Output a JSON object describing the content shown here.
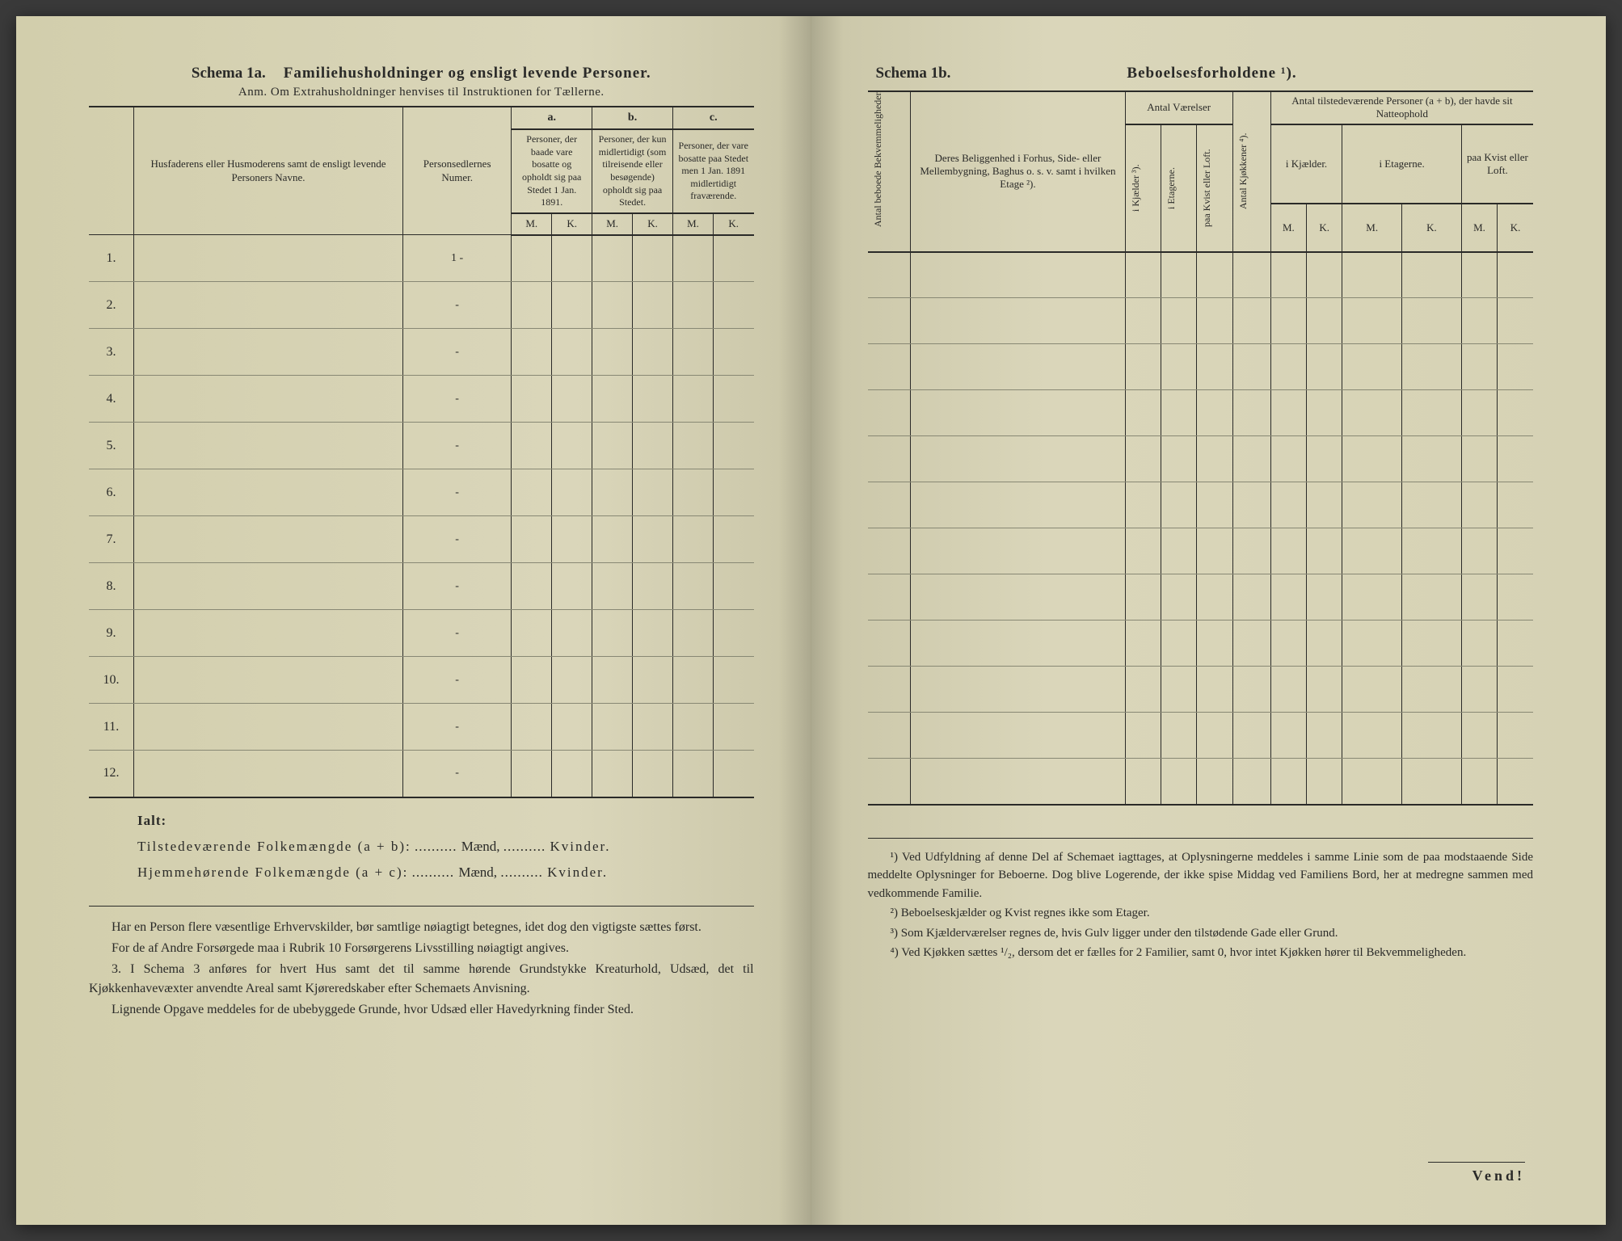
{
  "left": {
    "schema_label": "Schema 1a.",
    "schema_title": "Familiehusholdninger og ensligt levende Personer.",
    "subtitle": "Anm. Om Extrahusholdninger henvises til Instruktionen for Tællerne.",
    "col_name": "Husfaderens eller Husmoderens samt de ensligt levende Personers Navne.",
    "col_num": "Personsedlernes Numer.",
    "col_a_letter": "a.",
    "col_a": "Personer, der baade vare bosatte og opholdt sig paa Stedet 1 Jan. 1891.",
    "col_b_letter": "b.",
    "col_b": "Personer, der kun midlertidigt (som tilreisende eller besøgende) opholdt sig paa Stedet.",
    "col_c_letter": "c.",
    "col_c": "Personer, der vare bosatte paa Stedet men 1 Jan. 1891 midlertidigt fraværende.",
    "mk_m": "M.",
    "mk_k": "K.",
    "row_labels": [
      "1.",
      "2.",
      "3.",
      "4.",
      "5.",
      "6.",
      "7.",
      "8.",
      "9.",
      "10.",
      "11.",
      "12."
    ],
    "row_marks": [
      "1 -",
      "-",
      "-",
      "-",
      "-",
      "-",
      "-",
      "-",
      "-",
      "-",
      "-",
      "-"
    ],
    "ialt": "Ialt:",
    "tot1_a": "Tilstedeværende Folkemængde (a + b):",
    "tot1_b": "Mænd,",
    "tot1_c": "Kvinder.",
    "tot2_a": "Hjemmehørende Folkemængde (a + c):",
    "tot2_b": "Mænd,",
    "tot2_c": "Kvinder.",
    "note1": "Har en Person flere væsentlige Erhvervskilder, bør samtlige nøiagtigt betegnes, idet dog den vigtigste sættes først.",
    "note2": "For de af Andre Forsørgede maa i Rubrik 10 Forsørgerens Livsstilling nøiagtigt angives.",
    "note3_num": "3.",
    "note3": "I Schema 3 anføres for hvert Hus samt det til samme hørende Grundstykke Kreaturhold, Udsæd, det til Kjøkkenhavevæxter anvendte Areal samt Kjøreredskaber efter Schemaets Anvisning.",
    "note4": "Lignende Opgave meddeles for de ubebyggede Grunde, hvor Udsæd eller Havedyrkning finder Sted."
  },
  "right": {
    "schema_label": "Schema 1b.",
    "schema_title": "Beboelsesforholdene ¹).",
    "col1": "Antal beboede Bekvemmeligheder.",
    "col2": "Deres Beliggenhed i Forhus, Side- eller Mellembygning, Baghus o. s. v. samt i hvilken Etage ²).",
    "group_rooms": "Antal Værelser",
    "col3": "i Kjælder ³).",
    "col4": "i Etagerne.",
    "col5": "paa Kvist eller Loft.",
    "col6": "Antal Kjøkkener ⁴).",
    "group_persons": "Antal tilstedeværende Personer (a + b), der havde sit Natteophold",
    "sub1": "i Kjælder.",
    "sub2": "i Etagerne.",
    "sub3": "paa Kvist eller Loft.",
    "mk_m": "M.",
    "mk_k": "K.",
    "fn1": "¹) Ved Udfyldning af denne Del af Schemaet iagttages, at Oplysningerne meddeles i samme Linie som de paa modstaaende Side meddelte Oplysninger for Beboerne. Dog blive Logerende, der ikke spise Middag ved Familiens Bord, her at medregne sammen med vedkommende Familie.",
    "fn2": "²) Beboelseskjælder og Kvist regnes ikke som Etager.",
    "fn3": "³) Som Kjælderværelser regnes de, hvis Gulv ligger under den tilstødende Gade eller Grund.",
    "fn4": "⁴) Ved Kjøkken sættes ¹/₂, dersom det er fælles for 2 Familier, samt 0, hvor intet Kjøkken hører til Bekvemmeligheden.",
    "vend": "Vend!"
  },
  "rows_b": 12,
  "colors": {
    "paper": "#d8d4b8",
    "ink": "#2a2a28",
    "rule_light": "#888874"
  }
}
